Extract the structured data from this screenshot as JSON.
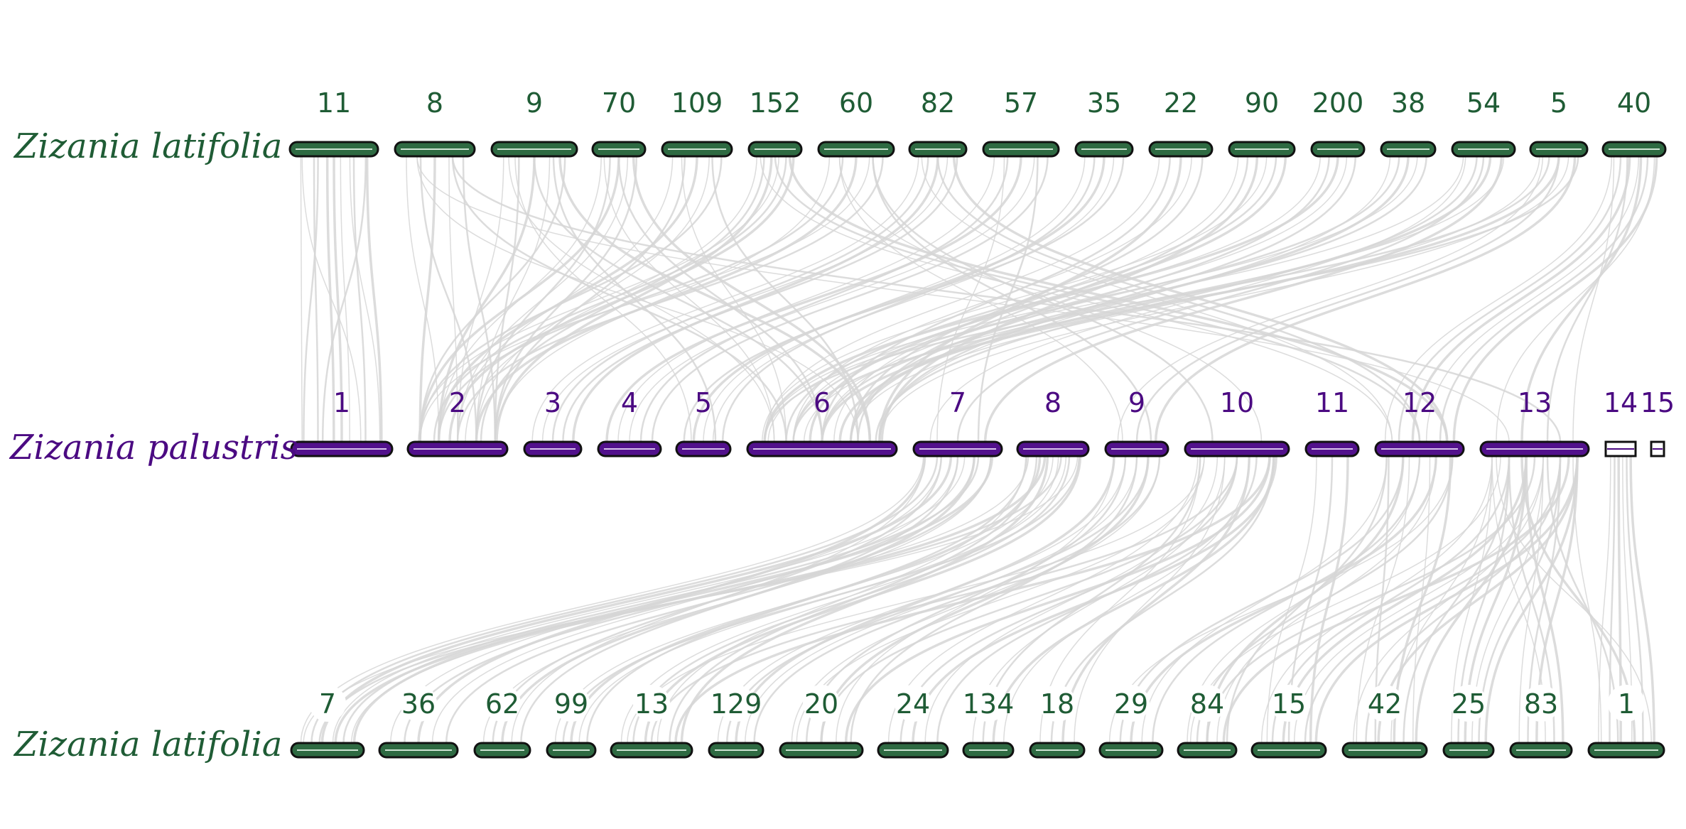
{
  "colors": {
    "latifolia": "#1f5c35",
    "latifolia_fill": "#2e6a42",
    "palustris": "#4b0a82",
    "palustris_fill": "#52118c",
    "link": "#d6d6d6",
    "outline": "#111111"
  },
  "tracks": [
    {
      "species": "Zizania latifolia",
      "color_key": "latifolia",
      "chromosomes": [
        "11",
        "8",
        "9",
        "70",
        "109",
        "152",
        "60",
        "82",
        "57",
        "35",
        "22",
        "90",
        "200",
        "38",
        "54",
        "5",
        "40"
      ]
    },
    {
      "species": "Zizania palustris",
      "color_key": "palustris",
      "chromosomes": [
        "1",
        "2",
        "3",
        "4",
        "5",
        "6",
        "7",
        "8",
        "9",
        "10",
        "11",
        "12",
        "13",
        "14",
        "15"
      ]
    },
    {
      "species": "Zizania latifolia",
      "color_key": "latifolia",
      "chromosomes": [
        "7",
        "36",
        "62",
        "99",
        "13",
        "129",
        "20",
        "24",
        "134",
        "18",
        "29",
        "84",
        "15",
        "42",
        "25",
        "83",
        "1"
      ]
    }
  ],
  "links_top": [
    [
      "11",
      "1",
      6
    ],
    [
      "11",
      "1",
      5
    ],
    [
      "8",
      "2",
      5
    ],
    [
      "8",
      "6",
      2
    ],
    [
      "9",
      "2",
      5
    ],
    [
      "9",
      "6",
      3
    ],
    [
      "9",
      "5",
      2
    ],
    [
      "70",
      "2",
      5
    ],
    [
      "70",
      "6",
      3
    ],
    [
      "109",
      "2",
      5
    ],
    [
      "109",
      "6",
      2
    ],
    [
      "152",
      "2",
      6
    ],
    [
      "152",
      "12",
      3
    ],
    [
      "60",
      "2",
      5
    ],
    [
      "60",
      "9",
      2
    ],
    [
      "82",
      "3",
      5
    ],
    [
      "82",
      "12",
      3
    ],
    [
      "57",
      "4",
      5
    ],
    [
      "57",
      "7",
      2
    ],
    [
      "35",
      "5",
      5
    ],
    [
      "22",
      "6",
      5
    ],
    [
      "90",
      "6",
      6
    ],
    [
      "200",
      "6",
      5
    ],
    [
      "38",
      "6",
      5
    ],
    [
      "54",
      "6",
      4
    ],
    [
      "54",
      "7",
      3
    ],
    [
      "5",
      "6",
      5
    ],
    [
      "5",
      "9",
      3
    ],
    [
      "40",
      "12",
      6
    ],
    [
      "40",
      "13",
      4
    ],
    [
      "8",
      "13",
      2
    ],
    [
      "60",
      "10",
      2
    ]
  ],
  "links_bottom": [
    [
      "7",
      "7",
      6
    ],
    [
      "7",
      "8",
      4
    ],
    [
      "36",
      "7",
      5
    ],
    [
      "62",
      "7",
      5
    ],
    [
      "99",
      "8",
      5
    ],
    [
      "13",
      "8",
      6
    ],
    [
      "13",
      "10",
      3
    ],
    [
      "129",
      "9",
      5
    ],
    [
      "20",
      "9",
      5
    ],
    [
      "20",
      "10",
      3
    ],
    [
      "24",
      "10",
      5
    ],
    [
      "134",
      "10",
      4
    ],
    [
      "18",
      "10",
      4
    ],
    [
      "29",
      "12",
      5
    ],
    [
      "84",
      "12",
      5
    ],
    [
      "84",
      "13",
      3
    ],
    [
      "15",
      "13",
      6
    ],
    [
      "42",
      "13",
      6
    ],
    [
      "25",
      "13",
      6
    ],
    [
      "83",
      "13",
      6
    ],
    [
      "1",
      "14",
      6
    ],
    [
      "1",
      "13",
      4
    ],
    [
      "15",
      "11",
      3
    ],
    [
      "42",
      "12",
      4
    ]
  ]
}
